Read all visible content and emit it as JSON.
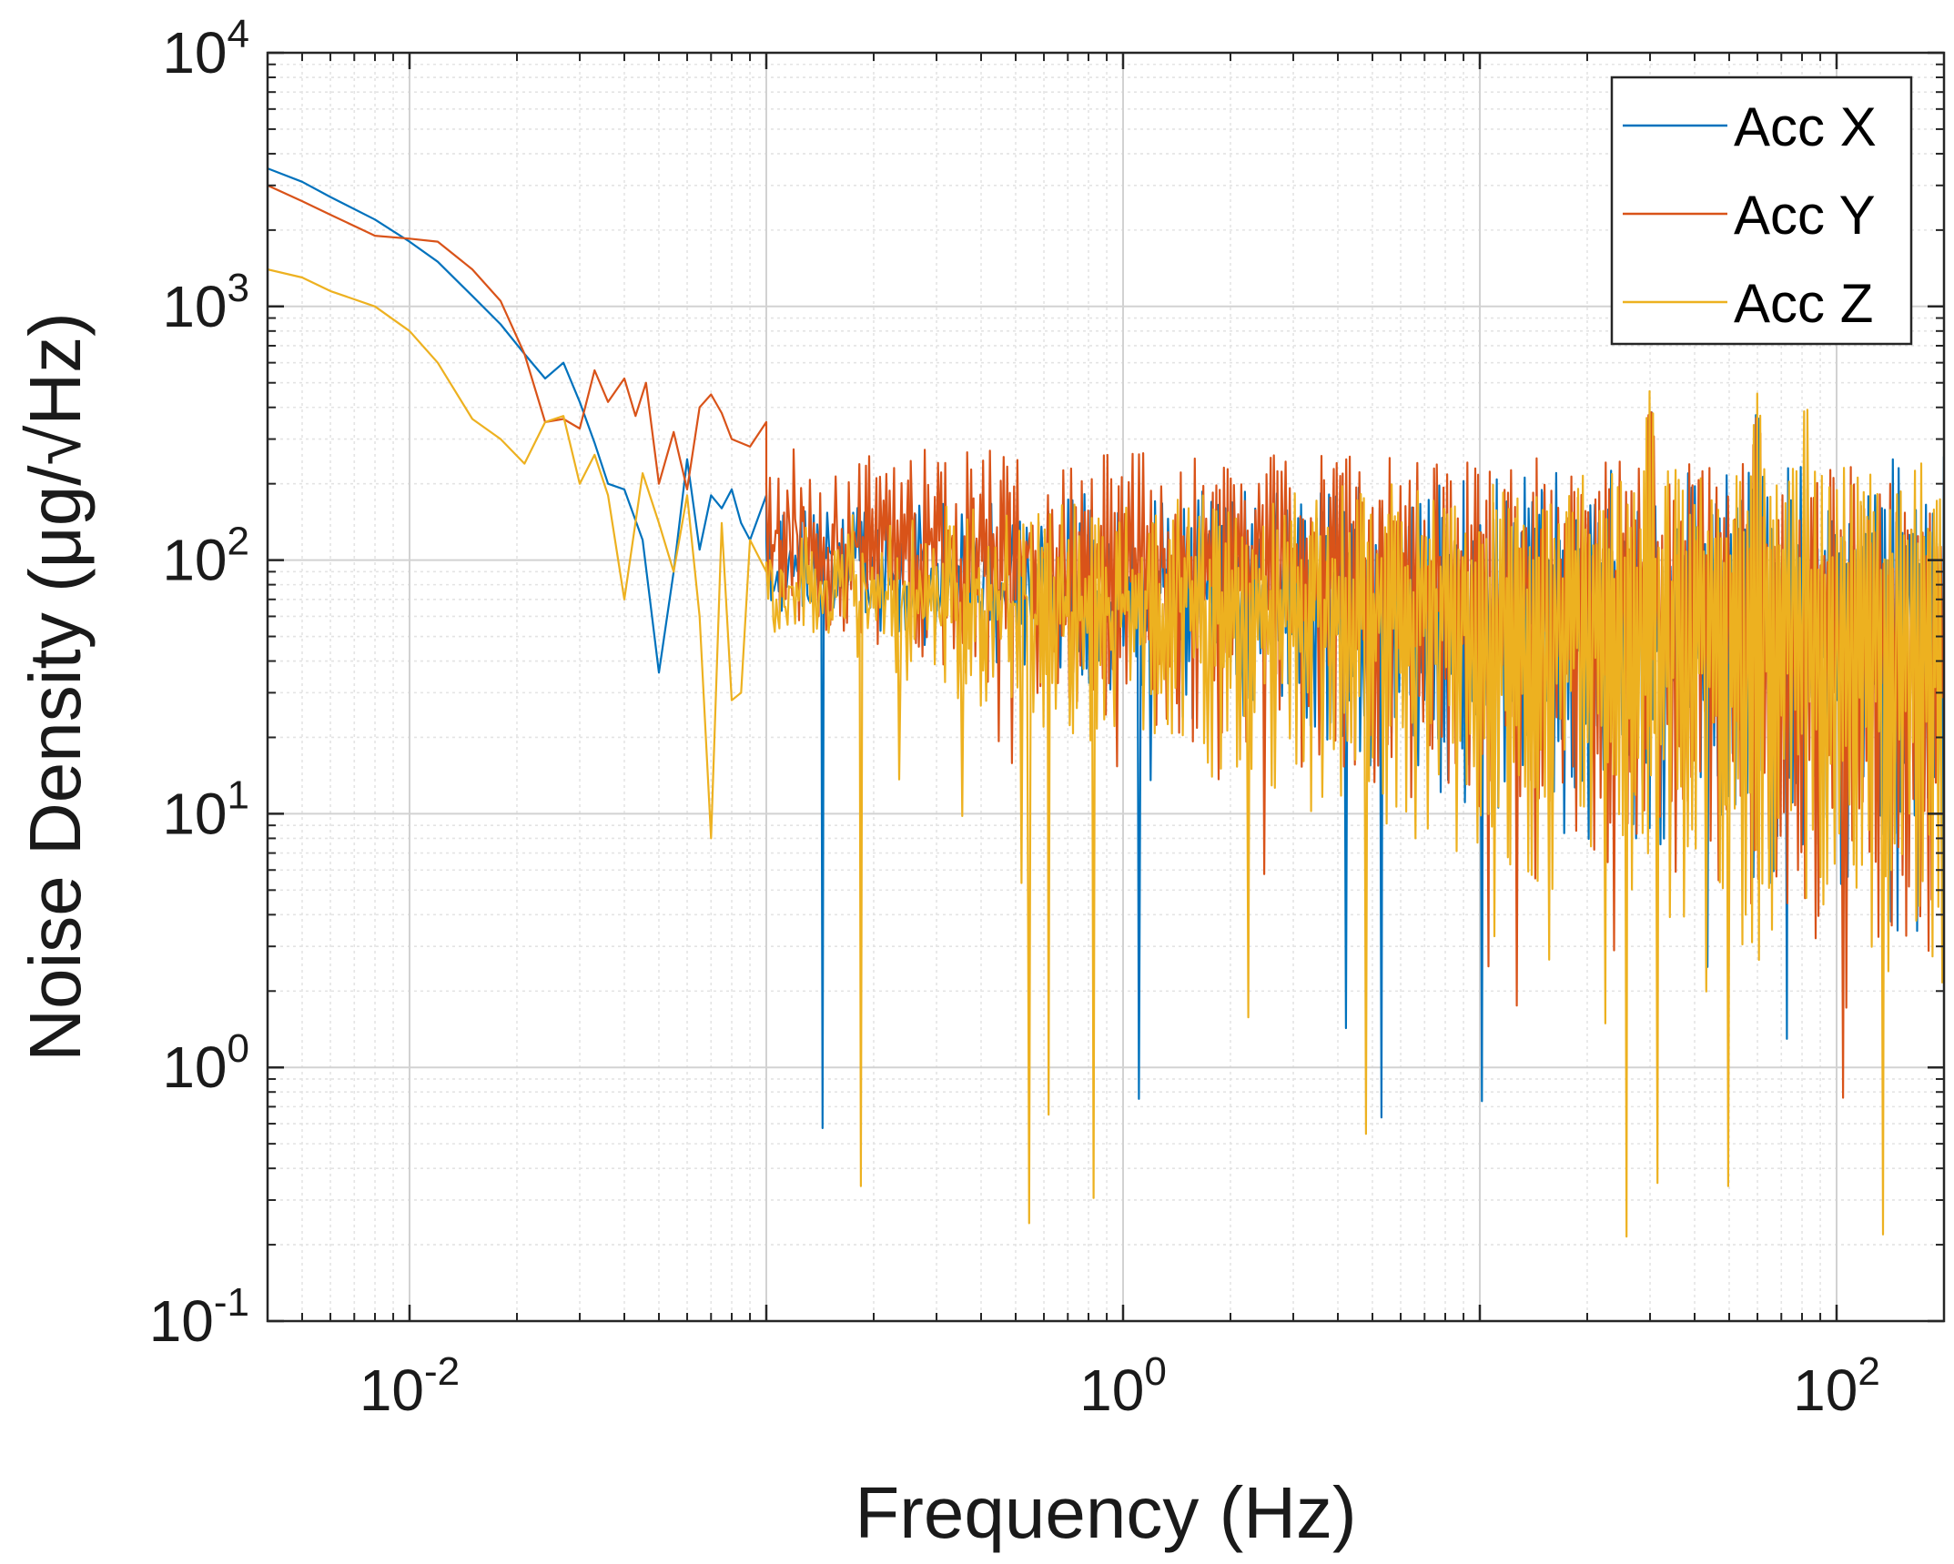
{
  "chart_data": {
    "type": "line",
    "title": "",
    "xlabel": "Frequency (Hz)",
    "ylabel": "Noise Density (μg/√Hz)",
    "xscale": "log",
    "yscale": "log",
    "xlim": [
      0.004,
      200
    ],
    "ylim": [
      0.1,
      10000
    ],
    "grid": true,
    "minor_grid": true,
    "legend_position": "top-right",
    "x_ticks": [
      {
        "base": "10",
        "exp": "-2",
        "value": 0.01
      },
      {
        "base": "10",
        "exp": "0",
        "value": 1
      },
      {
        "base": "10",
        "exp": "2",
        "value": 100
      }
    ],
    "y_ticks": [
      {
        "base": "10",
        "exp": "-1",
        "value": 0.1
      },
      {
        "base": "10",
        "exp": "0",
        "value": 1
      },
      {
        "base": "10",
        "exp": "1",
        "value": 10
      },
      {
        "base": "10",
        "exp": "2",
        "value": 100
      },
      {
        "base": "10",
        "exp": "3",
        "value": 1000
      },
      {
        "base": "10",
        "exp": "4",
        "value": 10000
      }
    ],
    "series": [
      {
        "name": "Acc X",
        "color": "#0072BD",
        "x": [
          0.004,
          0.005,
          0.006,
          0.008,
          0.01,
          0.012,
          0.015,
          0.018,
          0.021,
          0.024,
          0.027,
          0.03,
          0.033,
          0.036,
          0.04,
          0.045,
          0.05,
          0.055,
          0.06,
          0.065,
          0.07,
          0.075,
          0.08,
          0.085,
          0.09,
          0.1
        ],
        "y": [
          3500,
          3100,
          2700,
          2200,
          1800,
          1500,
          1100,
          850,
          650,
          520,
          600,
          420,
          290,
          200,
          190,
          120,
          36,
          90,
          250,
          110,
          180,
          160,
          190,
          140,
          120,
          180
        ],
        "noise": {
          "top_start": 160,
          "top_end": 260,
          "bottom_start": 70,
          "bottom_end": 3,
          "dip_min": 0.5,
          "peaks": [
            {
              "f": 30,
              "v": 430
            },
            {
              "f": 60,
              "v": 420
            }
          ]
        }
      },
      {
        "name": "Acc Y",
        "color": "#D95319",
        "x": [
          0.004,
          0.005,
          0.006,
          0.008,
          0.01,
          0.012,
          0.015,
          0.018,
          0.021,
          0.024,
          0.027,
          0.03,
          0.033,
          0.036,
          0.04,
          0.043,
          0.046,
          0.05,
          0.055,
          0.06,
          0.065,
          0.07,
          0.075,
          0.08,
          0.09,
          0.1
        ],
        "y": [
          3000,
          2600,
          2300,
          1900,
          1850,
          1800,
          1400,
          1050,
          650,
          350,
          360,
          330,
          560,
          420,
          520,
          370,
          500,
          200,
          320,
          190,
          400,
          450,
          380,
          300,
          280,
          350
        ],
        "noise": {
          "top_start": 280,
          "top_end": 240,
          "bottom_start": 60,
          "bottom_end": 2.5,
          "dip_min": 0.45,
          "peaks": [
            {
              "f": 30,
              "v": 420
            },
            {
              "f": 60,
              "v": 400
            }
          ]
        }
      },
      {
        "name": "Acc Z",
        "color": "#EDB120",
        "x": [
          0.004,
          0.005,
          0.006,
          0.008,
          0.01,
          0.012,
          0.015,
          0.018,
          0.021,
          0.024,
          0.027,
          0.03,
          0.033,
          0.036,
          0.04,
          0.045,
          0.05,
          0.055,
          0.06,
          0.065,
          0.07,
          0.075,
          0.08,
          0.085,
          0.09,
          0.1
        ],
        "y": [
          1400,
          1300,
          1150,
          1000,
          800,
          600,
          360,
          300,
          240,
          350,
          370,
          200,
          260,
          180,
          70,
          220,
          140,
          90,
          180,
          60,
          8,
          140,
          28,
          30,
          120,
          90
        ],
        "noise": {
          "top_start": 150,
          "top_end": 260,
          "bottom_start": 50,
          "bottom_end": 1.5,
          "dip_min": 0.18,
          "peaks": [
            {
              "f": 30,
              "v": 480
            },
            {
              "f": 60,
              "v": 460
            },
            {
              "f": 82,
              "v": 440
            }
          ]
        }
      }
    ]
  }
}
